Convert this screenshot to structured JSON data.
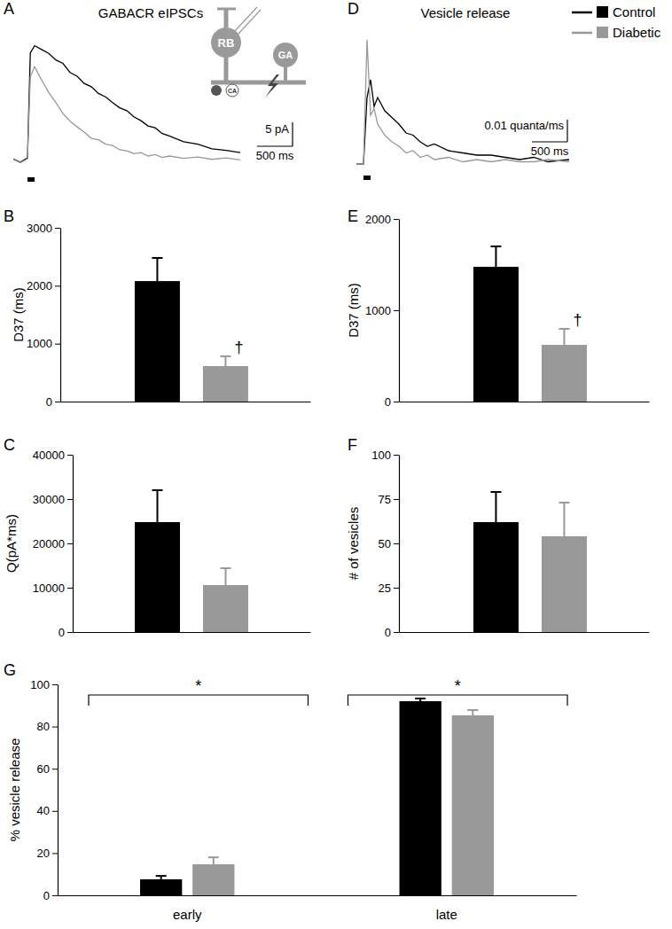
{
  "chart_data": [
    {
      "panel": "A",
      "type": "line",
      "title": "GABACR eIPSCs",
      "x": [
        -200,
        -100,
        0,
        40,
        100,
        200,
        300,
        400,
        500,
        600,
        700,
        800,
        900,
        1000,
        1100,
        1200,
        1300,
        1400,
        1500,
        1600,
        1700,
        1800,
        1900,
        2000,
        2200,
        2400,
        2600,
        2800,
        3000
      ],
      "series": [
        {
          "color": "#000000",
          "values": [
            0.3,
            -0.4,
            0.5,
            22.5,
            24.0,
            23.2,
            22.4,
            21.0,
            20.3,
            18.4,
            17.6,
            16.1,
            15.4,
            14.0,
            13.3,
            12.1,
            11.0,
            10.4,
            9.1,
            8.3,
            7.2,
            6.8,
            5.6,
            5.1,
            3.9,
            3.4,
            2.4,
            2.1,
            1.6
          ]
        },
        {
          "color": "#999999",
          "values": [
            0.2,
            -0.5,
            0.3,
            17.5,
            19.6,
            16.8,
            14.2,
            12.1,
            9.8,
            8.2,
            7.0,
            5.9,
            4.6,
            4.3,
            3.4,
            3.1,
            2.2,
            2.0,
            1.4,
            1.6,
            0.9,
            1.2,
            0.6,
            0.9,
            0.4,
            0.7,
            0.2,
            0.5,
            0.1
          ]
        }
      ],
      "xlim": [
        -200,
        3000
      ],
      "ylim": [
        -3,
        28
      ],
      "tick_labels": false,
      "scale_bar": {
        "x": 500,
        "x_label": "500 ms",
        "y": 5,
        "y_label": "5 pA"
      },
      "stimulus": [
        0,
        100
      ],
      "inset_labels": [
        "RB",
        "GA",
        "CA"
      ]
    },
    {
      "panel": "B",
      "type": "bar",
      "categories": [
        null,
        null
      ],
      "values": [
        2080,
        612
      ],
      "errors": [
        400,
        170
      ],
      "colors": [
        "#000000",
        "#999999"
      ],
      "ylabel": "D37 (ms)",
      "ylim": [
        0,
        3000
      ],
      "yticks": [
        0,
        1000,
        2000,
        3000
      ],
      "tick_labels": "y",
      "annotations": [
        {
          "text": "†",
          "index": 1
        }
      ]
    },
    {
      "panel": "C",
      "type": "bar",
      "categories": [
        null,
        null
      ],
      "values": [
        24800,
        10600
      ],
      "errors": [
        7200,
        3800
      ],
      "colors": [
        "#000000",
        "#999999"
      ],
      "ylabel": "Q(pA*ms)",
      "ylim": [
        0,
        40000
      ],
      "yticks": [
        0,
        10000,
        20000,
        30000,
        40000
      ],
      "tick_labels": "y"
    },
    {
      "panel": "D",
      "type": "line",
      "title": "Vesicle release",
      "x": [
        -100,
        0,
        50,
        100,
        150,
        200,
        300,
        400,
        500,
        600,
        700,
        800,
        900,
        1000,
        1200,
        1400,
        1600,
        1800,
        2000,
        2200,
        2400,
        2600,
        2900
      ],
      "series": [
        {
          "name": "Control",
          "color": "#000000",
          "values": [
            0,
            0,
            0.03,
            0.038,
            0.026,
            0.03,
            0.024,
            0.021,
            0.018,
            0.014,
            0.013,
            0.01,
            0.008,
            0.009,
            0.006,
            0.005,
            0.004,
            0.004,
            0.003,
            0.002,
            0.003,
            0.001,
            0.002
          ]
        },
        {
          "name": "Diabetic",
          "color": "#999999",
          "values": [
            0,
            0,
            0.056,
            0.022,
            0.025,
            0.018,
            0.013,
            0.01,
            0.008,
            0.005,
            0.006,
            0.003,
            0.004,
            0.002,
            0.003,
            0.001,
            0.002,
            0.001,
            0.002,
            0.001,
            0.001,
            0.002,
            0.001
          ]
        }
      ],
      "xlim": [
        -100,
        2900
      ],
      "ylim": [
        -0.004,
        0.06
      ],
      "tick_labels": false,
      "legend": "top-right",
      "scale_bar": {
        "x": 500,
        "x_label": "500 ms",
        "y": 0.01,
        "y_label": "0.01 quanta/ms"
      },
      "stimulus": [
        0,
        100
      ]
    },
    {
      "panel": "E",
      "type": "bar",
      "categories": [
        null,
        null
      ],
      "values": [
        1476,
        621
      ],
      "errors": [
        224,
        175
      ],
      "colors": [
        "#000000",
        "#999999"
      ],
      "ylabel": "D37 (ms)",
      "ylim": [
        0,
        2000
      ],
      "yticks": [
        0,
        1000,
        2000
      ],
      "tick_labels": "y",
      "annotations": [
        {
          "text": "†",
          "index": 1
        }
      ]
    },
    {
      "panel": "F",
      "type": "bar",
      "categories": [
        null,
        null
      ],
      "values": [
        62,
        54
      ],
      "errors": [
        17,
        19
      ],
      "colors": [
        "#000000",
        "#999999"
      ],
      "ylabel": "# of vesicles",
      "ylim": [
        0,
        100
      ],
      "yticks": [
        0,
        25,
        50,
        75,
        100
      ],
      "tick_labels": "y"
    },
    {
      "panel": "G",
      "type": "bar",
      "categories": [
        "early",
        "late"
      ],
      "series": [
        {
          "color": "#000000",
          "values": [
            7.6,
            92.0
          ],
          "errors": [
            1.6,
            1.3
          ]
        },
        {
          "color": "#999999",
          "values": [
            14.7,
            85.3
          ],
          "errors": [
            3.3,
            2.5
          ]
        }
      ],
      "ylabel": "% vesicle release",
      "ylim": [
        0,
        100
      ],
      "yticks": [
        0,
        20,
        40,
        60,
        80,
        100
      ],
      "annotations": [
        {
          "text": "*",
          "index": 0
        },
        {
          "text": "*",
          "index": 1
        }
      ]
    }
  ]
}
